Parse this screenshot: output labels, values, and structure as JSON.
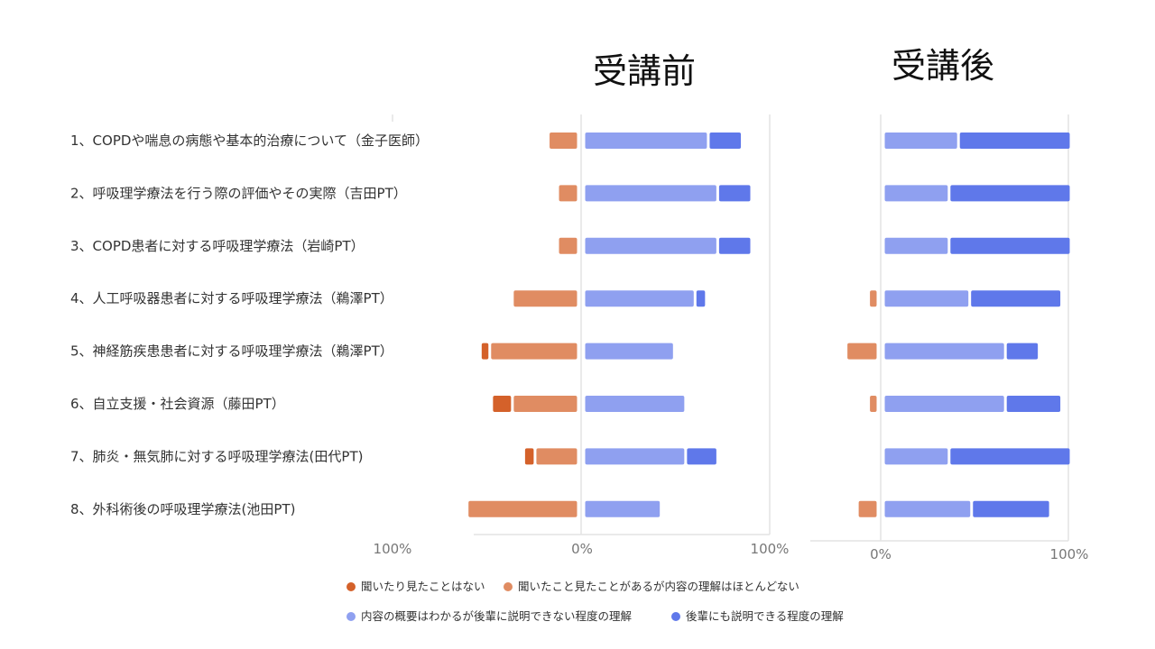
{
  "chart_data": [
    {
      "type": "bar",
      "orientation": "horizontal",
      "stacking": "diverging",
      "title": "受講前",
      "categories": [
        "1、COPDや喘息の病態や基本的治療について（金子医師）",
        "2、呼吸理学療法を行う際の評価やその実際（吉田PT）",
        "3、COPD患者に対する呼吸理学療法（岩崎PT）",
        "4、人工呼吸器患者に対する呼吸理学療法（鵜澤PT）",
        "5、神経筋疾患患者に対する呼吸理学療法（鵜澤PT）",
        "6、自立支援・社会資源（藤田PT）",
        "7、肺炎・無気肺に対する呼吸理学療法(田代PT)",
        "8、外科術後の呼吸理学療法(池田PT)"
      ],
      "series": [
        {
          "name": "聞いたり見たことはない",
          "side": "negative",
          "color": "#d4612a",
          "values": [
            0,
            0,
            0,
            0,
            5,
            11,
            6,
            0
          ]
        },
        {
          "name": "聞いたこと見たことがあるが内容の理解はほとんどない",
          "side": "negative",
          "color": "#e08c62",
          "values": [
            16,
            11,
            11,
            35,
            47,
            35,
            23,
            59
          ]
        },
        {
          "name": "内容の概要はわかるが後輩に説明できない程度の理解",
          "side": "positive",
          "color": "#8fa0f0",
          "values": [
            66,
            71,
            71,
            59,
            48,
            54,
            54,
            41
          ]
        },
        {
          "name": "後輩にも説明できる程度の理解",
          "side": "positive",
          "color": "#5f78ea",
          "values": [
            18,
            18,
            18,
            6,
            0,
            0,
            17,
            0
          ]
        }
      ],
      "xlim": [
        -100,
        100
      ],
      "xticks": [
        "100%",
        "0%",
        "100%"
      ],
      "grid": true
    },
    {
      "type": "bar",
      "orientation": "horizontal",
      "stacking": "diverging",
      "title": "受講後",
      "series": [
        {
          "name": "聞いたり見たことはない",
          "side": "negative",
          "color": "#d4612a",
          "values": [
            0,
            0,
            0,
            0,
            0,
            0,
            0,
            0
          ]
        },
        {
          "name": "聞いたこと見たことがあるが内容の理解はほとんどない",
          "side": "negative",
          "color": "#e08c62",
          "values": [
            0,
            0,
            0,
            5,
            17,
            5,
            0,
            11
          ]
        },
        {
          "name": "内容の概要はわかるが後輩に説明できない程度の理解",
          "side": "positive",
          "color": "#8fa0f0",
          "values": [
            40,
            35,
            35,
            46,
            65,
            65,
            35,
            47
          ]
        },
        {
          "name": "後輩にも説明できる程度の理解",
          "side": "positive",
          "color": "#5f78ea",
          "values": [
            60,
            65,
            65,
            49,
            18,
            30,
            65,
            42
          ]
        }
      ],
      "xlim": [
        -20,
        100
      ],
      "xticks": [
        "0%",
        "100%"
      ],
      "grid": true
    }
  ],
  "legend": {
    "placement": "bottom",
    "items": [
      "聞いたり見たことはない",
      "聞いたこと見たことがあるが内容の理解はほとんどない",
      "内容の概要はわかるが後輩に説明できない程度の理解",
      "後輩にも説明できる程度の理解"
    ],
    "colors": [
      "#d4612a",
      "#e08c62",
      "#8fa0f0",
      "#5f78ea"
    ]
  }
}
